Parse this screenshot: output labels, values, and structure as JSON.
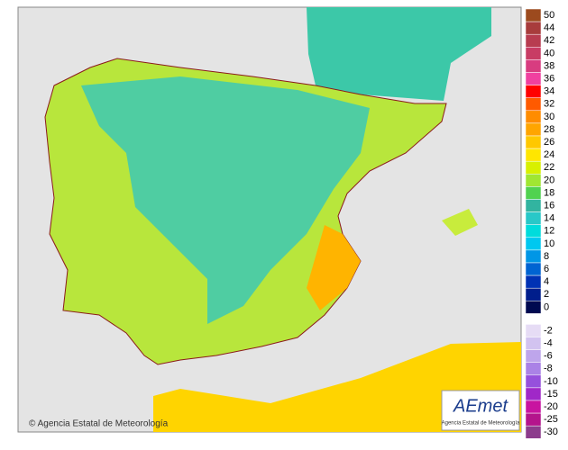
{
  "copyright": "© Agencia Estatal de Meteorología",
  "logo": {
    "name": "AEmet",
    "subtitle": "Agencia Estatal de Meteorología"
  },
  "legend": [
    {
      "label": 50,
      "color": "#9c4a1e"
    },
    {
      "label": 44,
      "color": "#a83c3c"
    },
    {
      "label": 42,
      "color": "#b83c50"
    },
    {
      "label": 40,
      "color": "#c83c64"
    },
    {
      "label": 38,
      "color": "#d83c80"
    },
    {
      "label": 36,
      "color": "#f040a0"
    },
    {
      "label": 34,
      "color": "#ff0000"
    },
    {
      "label": 32,
      "color": "#ff5a00"
    },
    {
      "label": 30,
      "color": "#ff8c00"
    },
    {
      "label": 28,
      "color": "#ffa500"
    },
    {
      "label": 26,
      "color": "#ffc800"
    },
    {
      "label": 24,
      "color": "#ffe600"
    },
    {
      "label": 22,
      "color": "#d8f000"
    },
    {
      "label": 20,
      "color": "#a0e632"
    },
    {
      "label": 18,
      "color": "#50d250"
    },
    {
      "label": 16,
      "color": "#32b4a0"
    },
    {
      "label": 14,
      "color": "#28c8c8"
    },
    {
      "label": 12,
      "color": "#00dcdc"
    },
    {
      "label": 10,
      "color": "#00c8f0"
    },
    {
      "label": 8,
      "color": "#0096e6"
    },
    {
      "label": 6,
      "color": "#0064d2"
    },
    {
      "label": 4,
      "color": "#0032b4"
    },
    {
      "label": 2,
      "color": "#001e8c"
    },
    {
      "label": 0,
      "color": "#000a50"
    },
    {
      "label": -2,
      "color": "#e6dcf5"
    },
    {
      "label": -4,
      "color": "#d2c3f0"
    },
    {
      "label": -6,
      "color": "#bea5eb"
    },
    {
      "label": -8,
      "color": "#aa82e6"
    },
    {
      "label": -10,
      "color": "#9650dc"
    },
    {
      "label": -15,
      "color": "#a028c8"
    },
    {
      "label": -20,
      "color": "#c814a0"
    },
    {
      "label": -25,
      "color": "#b4148c"
    },
    {
      "label": -30,
      "color": "#8c3c8c"
    }
  ]
}
